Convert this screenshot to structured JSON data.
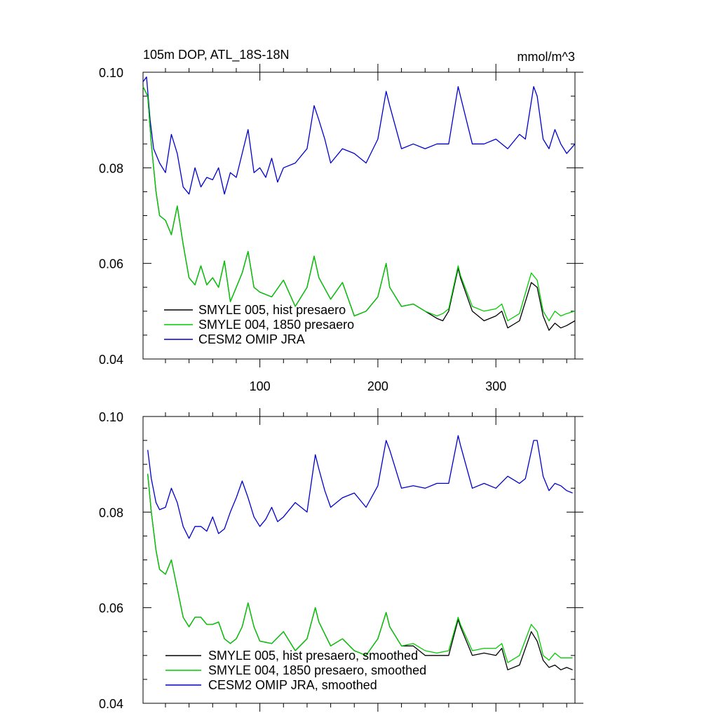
{
  "chart_data": [
    {
      "type": "line",
      "title": "105m DOP, ATL_18S-18N",
      "units": "mmol/m^3",
      "xlim": [
        1,
        367
      ],
      "ylim": [
        0.04,
        0.1
      ],
      "xticks": [
        100,
        200,
        300
      ],
      "xtick_labels": [
        "100",
        "200",
        "300"
      ],
      "yticks": [
        0.04,
        0.06,
        0.08,
        0.1
      ],
      "ytick_labels": [
        "0.04",
        "0.06",
        "0.08",
        "0.10"
      ],
      "legend_position": "bottom-left",
      "colors": {
        "smyle005": "#000000",
        "smyle004": "#00cc00",
        "omip": "#0000cc"
      },
      "series": [
        {
          "name": "SMYLE 005, hist presaero",
          "color": "#000000",
          "x": [
            1,
            5,
            8,
            12,
            15,
            20,
            25,
            30,
            35,
            40,
            45,
            50,
            55,
            60,
            65,
            70,
            75,
            80,
            85,
            90,
            95,
            100,
            110,
            120,
            130,
            140,
            146,
            150,
            160,
            170,
            180,
            190,
            200,
            207,
            210,
            220,
            230,
            240,
            250,
            255,
            260,
            268,
            270,
            280,
            290,
            300,
            305,
            310,
            320,
            330,
            335,
            340,
            345,
            350,
            355,
            360,
            367
          ],
          "y": [
            0.097,
            0.095,
            0.085,
            0.075,
            0.07,
            0.069,
            0.066,
            0.072,
            0.064,
            0.057,
            0.0555,
            0.0595,
            0.0555,
            0.057,
            0.055,
            0.0605,
            0.052,
            0.055,
            0.058,
            0.0625,
            0.055,
            0.054,
            0.053,
            0.0565,
            0.051,
            0.055,
            0.0615,
            0.057,
            0.0525,
            0.056,
            0.049,
            0.05,
            0.053,
            0.06,
            0.055,
            0.051,
            0.0515,
            0.05,
            0.0485,
            0.048,
            0.05,
            0.059,
            0.057,
            0.05,
            0.048,
            0.049,
            0.05,
            0.0465,
            0.048,
            0.056,
            0.055,
            0.049,
            0.046,
            0.0475,
            0.0465,
            0.047,
            0.048
          ]
        },
        {
          "name": "SMYLE 004, 1850 presaero",
          "color": "#00cc00",
          "x": [
            1,
            5,
            8,
            12,
            15,
            20,
            25,
            30,
            35,
            40,
            45,
            50,
            55,
            60,
            65,
            70,
            75,
            80,
            85,
            90,
            95,
            100,
            110,
            120,
            130,
            140,
            146,
            150,
            160,
            170,
            180,
            190,
            200,
            207,
            210,
            220,
            230,
            240,
            250,
            255,
            260,
            268,
            270,
            280,
            290,
            300,
            305,
            310,
            320,
            330,
            335,
            340,
            345,
            350,
            355,
            360,
            367
          ],
          "y": [
            0.097,
            0.095,
            0.085,
            0.075,
            0.07,
            0.069,
            0.066,
            0.072,
            0.064,
            0.057,
            0.0555,
            0.0595,
            0.0555,
            0.057,
            0.055,
            0.0605,
            0.052,
            0.055,
            0.058,
            0.0625,
            0.055,
            0.054,
            0.053,
            0.0565,
            0.051,
            0.055,
            0.0615,
            0.057,
            0.0525,
            0.056,
            0.049,
            0.05,
            0.053,
            0.06,
            0.055,
            0.051,
            0.0515,
            0.05,
            0.049,
            0.0495,
            0.0505,
            0.0595,
            0.0575,
            0.051,
            0.05,
            0.0505,
            0.0515,
            0.048,
            0.0495,
            0.058,
            0.0565,
            0.05,
            0.048,
            0.05,
            0.049,
            0.0495,
            0.05
          ]
        },
        {
          "name": "CESM2 OMIP JRA",
          "color": "#0000cc",
          "x": [
            1,
            4,
            7,
            10,
            15,
            20,
            25,
            30,
            35,
            40,
            45,
            50,
            55,
            60,
            65,
            70,
            75,
            80,
            85,
            90,
            95,
            100,
            105,
            110,
            115,
            120,
            130,
            140,
            146,
            150,
            155,
            160,
            170,
            180,
            190,
            200,
            207,
            210,
            220,
            230,
            240,
            250,
            260,
            268,
            270,
            280,
            290,
            300,
            310,
            320,
            325,
            332,
            335,
            340,
            345,
            350,
            355,
            360,
            367
          ],
          "y": [
            0.098,
            0.099,
            0.09,
            0.084,
            0.081,
            0.079,
            0.087,
            0.083,
            0.076,
            0.0745,
            0.08,
            0.076,
            0.078,
            0.0775,
            0.08,
            0.0745,
            0.079,
            0.078,
            0.083,
            0.088,
            0.079,
            0.08,
            0.078,
            0.082,
            0.077,
            0.08,
            0.081,
            0.084,
            0.093,
            0.09,
            0.086,
            0.081,
            0.084,
            0.083,
            0.081,
            0.086,
            0.096,
            0.093,
            0.084,
            0.085,
            0.084,
            0.085,
            0.085,
            0.097,
            0.095,
            0.085,
            0.085,
            0.086,
            0.084,
            0.087,
            0.086,
            0.097,
            0.095,
            0.086,
            0.084,
            0.088,
            0.085,
            0.083,
            0.085
          ]
        }
      ]
    },
    {
      "type": "line",
      "xlim": [
        1,
        367
      ],
      "ylim": [
        0.04,
        0.1
      ],
      "yticks": [
        0.04,
        0.06,
        0.08,
        0.1
      ],
      "ytick_labels": [
        "0.04",
        "0.06",
        "0.08",
        "0.10"
      ],
      "legend_position": "bottom-left",
      "series": [
        {
          "name": "SMYLE 005, hist presaero, smoothed",
          "color": "#000000",
          "x": [
            5,
            8,
            12,
            15,
            20,
            25,
            30,
            35,
            40,
            45,
            50,
            55,
            60,
            65,
            70,
            75,
            80,
            85,
            90,
            95,
            100,
            110,
            120,
            130,
            140,
            147,
            150,
            160,
            170,
            180,
            190,
            200,
            207,
            210,
            220,
            230,
            240,
            250,
            260,
            268,
            270,
            280,
            290,
            300,
            305,
            310,
            320,
            330,
            335,
            340,
            345,
            350,
            355,
            360,
            365
          ],
          "y": [
            0.088,
            0.08,
            0.072,
            0.068,
            0.067,
            0.07,
            0.064,
            0.058,
            0.056,
            0.058,
            0.058,
            0.0565,
            0.0565,
            0.057,
            0.0535,
            0.0525,
            0.0535,
            0.056,
            0.061,
            0.056,
            0.053,
            0.0525,
            0.055,
            0.051,
            0.0535,
            0.06,
            0.057,
            0.052,
            0.0535,
            0.051,
            0.05,
            0.0535,
            0.059,
            0.056,
            0.052,
            0.052,
            0.05,
            0.05,
            0.05,
            0.0575,
            0.056,
            0.05,
            0.0505,
            0.05,
            0.0515,
            0.047,
            0.048,
            0.055,
            0.053,
            0.049,
            0.0475,
            0.048,
            0.047,
            0.0475,
            0.047
          ]
        },
        {
          "name": "SMYLE 004, 1850 presaero, smoothed",
          "color": "#00cc00",
          "x": [
            5,
            8,
            12,
            15,
            20,
            25,
            30,
            35,
            40,
            45,
            50,
            55,
            60,
            65,
            70,
            75,
            80,
            85,
            90,
            95,
            100,
            110,
            120,
            130,
            140,
            147,
            150,
            160,
            170,
            180,
            190,
            200,
            207,
            210,
            220,
            230,
            240,
            250,
            260,
            268,
            270,
            280,
            290,
            300,
            305,
            310,
            320,
            330,
            335,
            340,
            345,
            350,
            355,
            360,
            365
          ],
          "y": [
            0.088,
            0.08,
            0.072,
            0.068,
            0.067,
            0.07,
            0.064,
            0.058,
            0.056,
            0.058,
            0.058,
            0.0565,
            0.0565,
            0.057,
            0.0535,
            0.0525,
            0.0535,
            0.056,
            0.061,
            0.056,
            0.053,
            0.0525,
            0.055,
            0.051,
            0.0535,
            0.06,
            0.057,
            0.052,
            0.0535,
            0.051,
            0.05,
            0.0535,
            0.059,
            0.056,
            0.052,
            0.0525,
            0.051,
            0.0505,
            0.051,
            0.058,
            0.0565,
            0.051,
            0.0515,
            0.0515,
            0.0525,
            0.0485,
            0.05,
            0.0565,
            0.055,
            0.05,
            0.049,
            0.0505,
            0.0495,
            0.0495,
            0.0495
          ]
        },
        {
          "name": "CESM2 OMIP JRA, smoothed",
          "color": "#0000cc",
          "x": [
            5,
            8,
            12,
            15,
            20,
            25,
            30,
            35,
            40,
            45,
            50,
            55,
            60,
            65,
            70,
            75,
            80,
            85,
            90,
            95,
            100,
            105,
            110,
            115,
            120,
            130,
            140,
            147,
            150,
            155,
            160,
            170,
            180,
            190,
            200,
            207,
            210,
            220,
            230,
            240,
            250,
            260,
            268,
            270,
            280,
            290,
            300,
            310,
            320,
            325,
            332,
            335,
            340,
            345,
            350,
            355,
            360,
            365
          ],
          "y": [
            0.093,
            0.087,
            0.082,
            0.0805,
            0.081,
            0.085,
            0.082,
            0.077,
            0.0745,
            0.077,
            0.077,
            0.076,
            0.079,
            0.0755,
            0.0765,
            0.08,
            0.083,
            0.0865,
            0.083,
            0.079,
            0.077,
            0.0785,
            0.081,
            0.078,
            0.079,
            0.082,
            0.08,
            0.092,
            0.089,
            0.0845,
            0.081,
            0.083,
            0.084,
            0.081,
            0.0855,
            0.095,
            0.093,
            0.085,
            0.0855,
            0.085,
            0.086,
            0.086,
            0.096,
            0.094,
            0.085,
            0.086,
            0.085,
            0.0875,
            0.086,
            0.087,
            0.095,
            0.095,
            0.0875,
            0.0845,
            0.086,
            0.0855,
            0.0845,
            0.084
          ]
        }
      ]
    }
  ]
}
